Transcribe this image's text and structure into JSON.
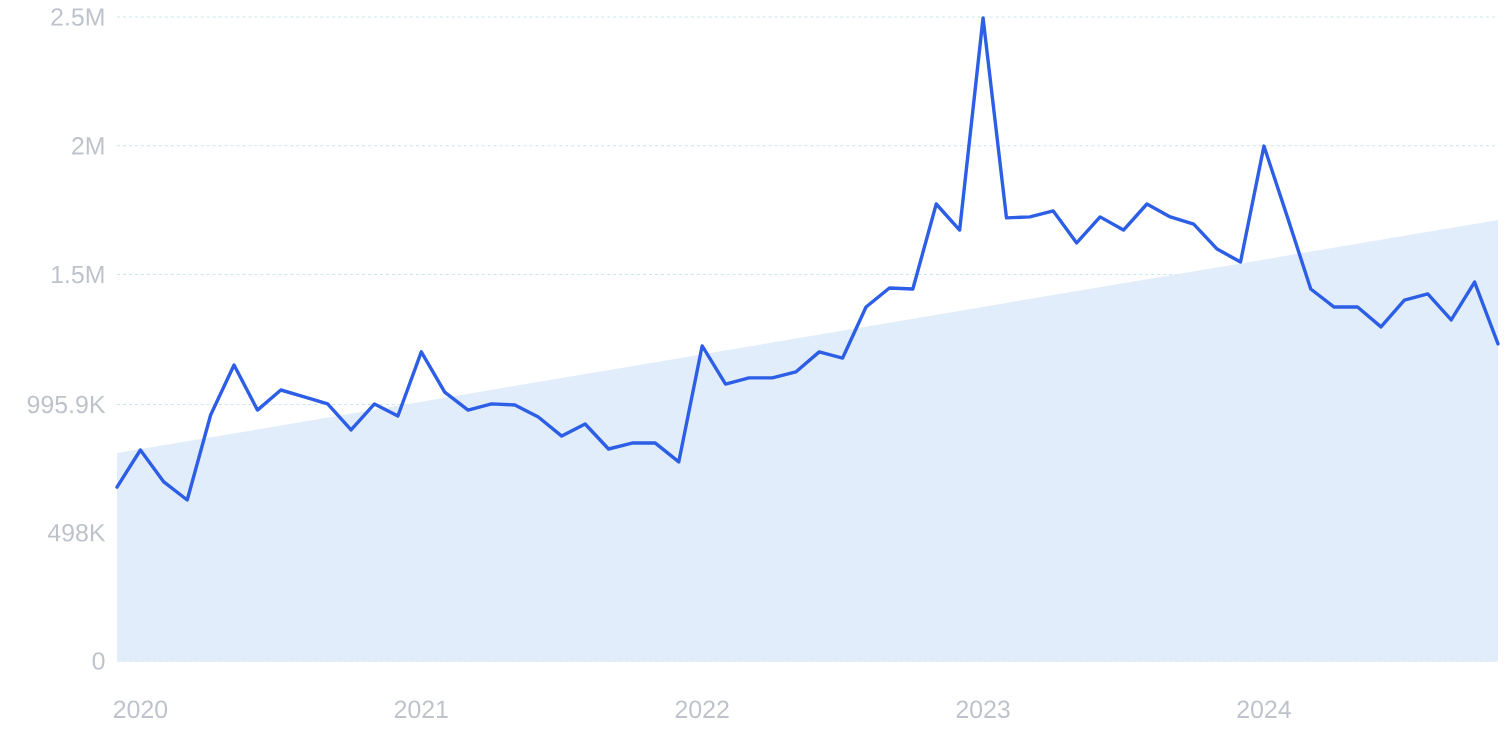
{
  "chart_data": {
    "type": "line",
    "x": [
      "2019-12",
      "2020-01",
      "2020-02",
      "2020-03",
      "2020-04",
      "2020-05",
      "2020-06",
      "2020-07",
      "2020-08",
      "2020-09",
      "2020-10",
      "2020-11",
      "2020-12",
      "2021-01",
      "2021-02",
      "2021-03",
      "2021-04",
      "2021-05",
      "2021-06",
      "2021-07",
      "2021-08",
      "2021-09",
      "2021-10",
      "2021-11",
      "2021-12",
      "2022-01",
      "2022-02",
      "2022-03",
      "2022-04",
      "2022-05",
      "2022-06",
      "2022-07",
      "2022-08",
      "2022-09",
      "2022-10",
      "2022-11",
      "2022-12",
      "2023-01",
      "2023-02",
      "2023-03",
      "2023-04",
      "2023-05",
      "2023-06",
      "2023-07",
      "2023-08",
      "2023-09",
      "2023-10",
      "2023-11",
      "2023-12",
      "2024-01",
      "2024-02",
      "2024-03",
      "2024-04",
      "2024-05",
      "2024-06",
      "2024-07",
      "2024-08",
      "2024-09",
      "2024-10",
      "2024-11"
    ],
    "series": [
      {
        "type": "area",
        "color": "#e2edfb",
        "x": [
          "2019-12",
          "2024-11"
        ],
        "values": [
          807000,
          1712000
        ]
      },
      {
        "color": "#2d5ee6",
        "values": [
          675000,
          819000,
          695000,
          625000,
          955000,
          1149000,
          974000,
          1052000,
          1025000,
          998000,
          897000,
          998000,
          951000,
          1200000,
          1044000,
          974000,
          998000,
          994000,
          947000,
          873000,
          920000,
          823000,
          846000,
          846000,
          773000,
          1223000,
          1075000,
          1099000,
          1099000,
          1122000,
          1200000,
          1176000,
          1374000,
          1448000,
          1444000,
          1774000,
          1673000,
          2496000,
          1720000,
          1724000,
          1747000,
          1623000,
          1724000,
          1673000,
          1774000,
          1724000,
          1696000,
          1599000,
          1549000,
          1999000,
          1724000,
          1444000,
          1374000,
          1374000,
          1297000,
          1401000,
          1425000,
          1324000,
          1471000,
          1231000
        ]
      }
    ],
    "xlim": [
      "2019-12",
      "2024-11"
    ],
    "xticks": [
      "2020",
      "2021",
      "2022",
      "2023",
      "2024"
    ],
    "ylim": [
      0,
      2500000
    ],
    "yticks": [
      0,
      {
        "value": 498000,
        "label": "498K"
      },
      {
        "value": 995900,
        "label": "995.9K"
      },
      {
        "value": 1500000,
        "label": "1.5M"
      },
      {
        "value": 2000000,
        "label": "2M"
      },
      {
        "value": 2500000,
        "label": "2.5M"
      }
    ],
    "grid": "y"
  }
}
